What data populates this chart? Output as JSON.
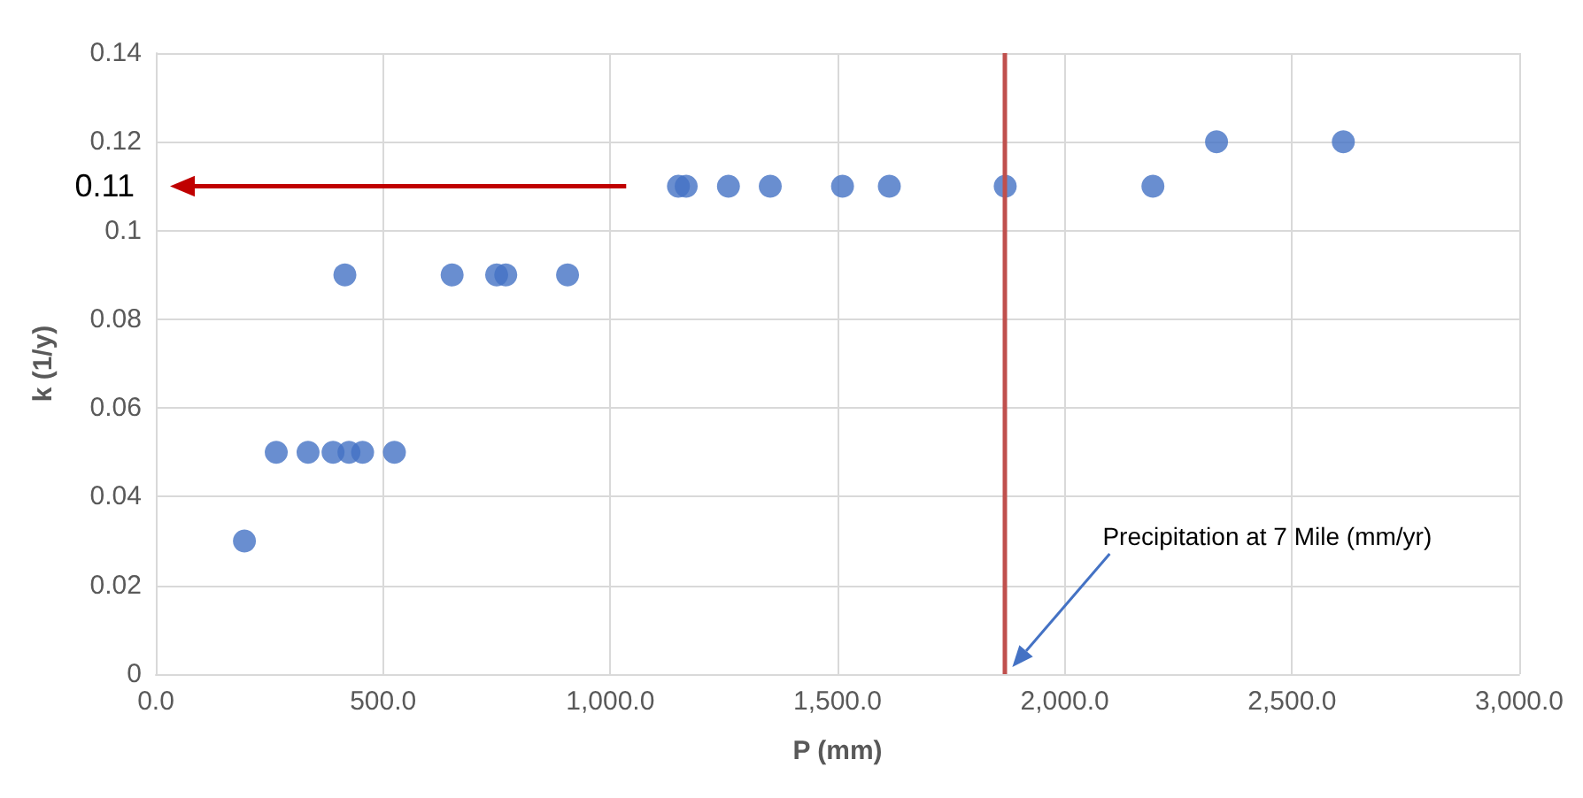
{
  "chart_data": {
    "type": "scatter",
    "xlabel": "P (mm)",
    "ylabel": "k (1/y)",
    "x": [
      195,
      265,
      335,
      390,
      425,
      455,
      525,
      416,
      652,
      750,
      770,
      906,
      1150,
      1167,
      1260,
      1352,
      1511,
      1614,
      1869,
      2194,
      2334,
      2613
    ],
    "values": [
      0.03,
      0.05,
      0.05,
      0.05,
      0.05,
      0.05,
      0.05,
      0.09,
      0.09,
      0.09,
      0.09,
      0.09,
      0.11,
      0.11,
      0.11,
      0.11,
      0.11,
      0.11,
      0.11,
      0.11,
      0.12,
      0.12
    ],
    "color": "#4472c4",
    "marker": "circle",
    "xlim": [
      0,
      3000
    ],
    "xticks": [
      {
        "value": 0,
        "label": "0.0"
      },
      {
        "value": 500,
        "label": "500.0"
      },
      {
        "value": 1000,
        "label": "1,000.0"
      },
      {
        "value": 1500,
        "label": "1,500.0"
      },
      {
        "value": 2000,
        "label": "2,000.0"
      },
      {
        "value": 2500,
        "label": "2,500.0"
      },
      {
        "value": 3000,
        "label": "3,000.0"
      }
    ],
    "ylim": [
      0,
      0.14
    ],
    "yticks": [
      0,
      0.02,
      0.04,
      0.06,
      0.08,
      0.1,
      0.12,
      0.14
    ],
    "grid": true,
    "annotations": [
      "Precipitation at 7 Mile (mm/yr)"
    ],
    "ref_lines": [
      {
        "axis": "x",
        "value": 1869,
        "color": "#c0504d"
      },
      {
        "axis": "y",
        "value": 0.11,
        "label": "0.11",
        "color": "#c00000"
      }
    ]
  }
}
